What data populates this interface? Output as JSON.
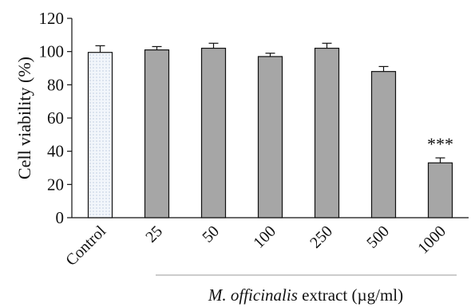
{
  "chart_data": {
    "type": "bar",
    "categories": [
      "Control",
      "25",
      "50",
      "100",
      "250",
      "500",
      "1000"
    ],
    "values": [
      99.5,
      101,
      102,
      97,
      102,
      88,
      33
    ],
    "errors": [
      4,
      2,
      3,
      2,
      3,
      3,
      3
    ],
    "annotations": [
      "",
      "",
      "",
      "",
      "",
      "",
      "***"
    ],
    "ylabel": "Cell viability (%)",
    "xlabel_italic": "M. officinalis",
    "xlabel_rest": " extract (µg/ml)",
    "ylim": [
      0,
      120
    ],
    "yticks": [
      0,
      20,
      40,
      60,
      80,
      100,
      120
    ],
    "grid": false,
    "colors": {
      "control_fill": "#f2f6fb",
      "control_pattern": "#b7c6dc",
      "treated_fill": "#a6a6a6",
      "stroke": "#111111"
    }
  }
}
